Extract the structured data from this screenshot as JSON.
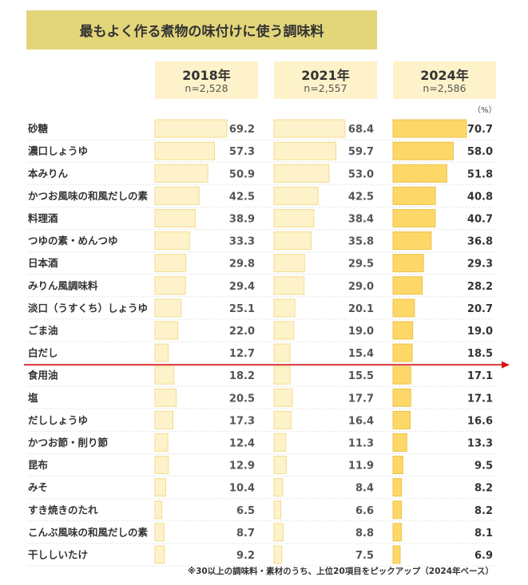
{
  "title": "最もよく作る煮物の味付けに使う調味料",
  "unit": "（%）",
  "footnote": "※30以上の調味料・素材のうち、上位20項目をピックアップ（2024年ベース）",
  "colors": {
    "title_bg": "#e2d57a",
    "header_bg": "#fdf2c9",
    "bar_light": "#fdf2c9",
    "bar_light_border": "#f3dc8e",
    "bar_strong": "#fdd868",
    "bar_strong_border": "#ebc24a",
    "divider": "#dd1111"
  },
  "chart_data": {
    "type": "bar",
    "orientation": "horizontal",
    "categories": [
      "砂糖",
      "濃口しょうゆ",
      "本みりん",
      "かつお風味の和風だしの素",
      "料理酒",
      "つゆの素・めんつゆ",
      "日本酒",
      "みりん風調味料",
      "淡口（うすくち）しょうゆ",
      "ごま油",
      "白だし",
      "食用油",
      "塩",
      "だししょうゆ",
      "かつお節・削り節",
      "昆布",
      "みそ",
      "すき焼きのたれ",
      "こんぶ風味の和風だしの素",
      "干ししいたけ"
    ],
    "series": [
      {
        "name": "2018年",
        "sample": "n=2,528",
        "values": [
          69.2,
          57.3,
          50.9,
          42.5,
          38.9,
          33.3,
          29.8,
          29.4,
          25.1,
          22.0,
          12.7,
          18.2,
          20.5,
          17.3,
          12.4,
          12.9,
          10.4,
          6.5,
          8.7,
          9.2
        ]
      },
      {
        "name": "2021年",
        "sample": "n=2,557",
        "values": [
          68.4,
          59.7,
          53.0,
          42.5,
          38.4,
          35.8,
          29.5,
          29.0,
          20.1,
          19.0,
          15.4,
          15.5,
          17.7,
          16.4,
          11.3,
          11.9,
          8.4,
          6.6,
          8.8,
          7.5
        ]
      },
      {
        "name": "2024年",
        "sample": "n=2,586",
        "values": [
          70.7,
          58.0,
          51.8,
          40.8,
          40.7,
          36.8,
          29.3,
          28.2,
          20.7,
          19.0,
          18.5,
          17.1,
          17.1,
          16.6,
          13.3,
          9.5,
          8.2,
          8.2,
          8.1,
          6.9
        ]
      }
    ],
    "divider_after_index": 10,
    "grid": false,
    "legend": "column headers above bars"
  }
}
